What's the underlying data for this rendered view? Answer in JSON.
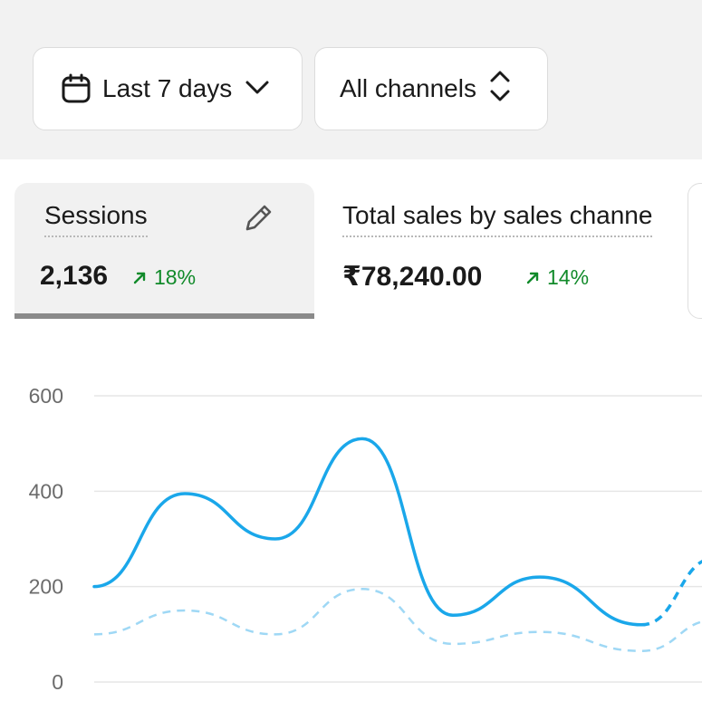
{
  "filters": {
    "date_range": {
      "label": "Last 7 days",
      "icon": "calendar-icon"
    },
    "channel": {
      "label": "All channels",
      "icon": "up-down-chevron-icon"
    }
  },
  "metrics": [
    {
      "title": "Sessions",
      "value": "2,136",
      "delta": "18%",
      "selected": true
    },
    {
      "title": "Total sales by sales channe",
      "value": "₹78,240.00",
      "delta": "14%",
      "selected": false
    }
  ],
  "colors": {
    "series_current": "#1aa7ea",
    "series_previous": "#9fd8f5",
    "positive": "#118a2a"
  },
  "chart_data": {
    "type": "line",
    "y_ticks": [
      "600",
      "400",
      "200",
      "0"
    ],
    "ylim": [
      0,
      600
    ],
    "grid": true,
    "series": [
      {
        "values": [
          200,
          395,
          300,
          510,
          140,
          220,
          120,
          260
        ],
        "style": "solid",
        "last_segment": "dashed"
      },
      {
        "values": [
          100,
          150,
          100,
          195,
          80,
          105,
          65,
          130
        ],
        "style": "dashed"
      }
    ]
  }
}
